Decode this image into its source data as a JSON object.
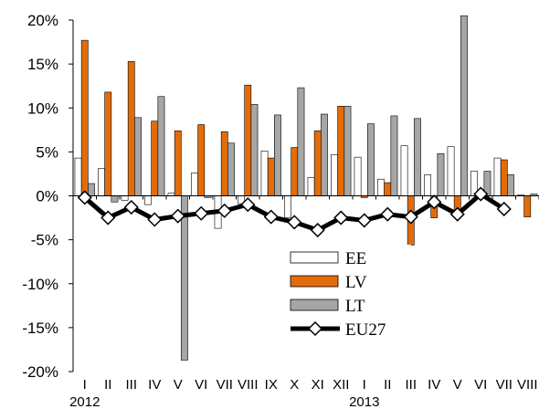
{
  "chart_data": {
    "type": "bar",
    "title": "",
    "xlabel": "",
    "ylabel": "",
    "ylim": [
      -20,
      20
    ],
    "y_ticks": [
      "20%",
      "15%",
      "10%",
      "5%",
      "0%",
      "-5%",
      "-10%",
      "-15%",
      "-20%"
    ],
    "y_tick_values": [
      20,
      15,
      10,
      5,
      0,
      -5,
      -10,
      -15,
      -20
    ],
    "grid": false,
    "legend_position": "lower-center",
    "categories": [
      "I",
      "II",
      "III",
      "IV",
      "V",
      "VI",
      "VII",
      "VIII",
      "IX",
      "X",
      "XI",
      "XII",
      "I",
      "II",
      "III",
      "IV",
      "V",
      "VI",
      "VII",
      "VIII"
    ],
    "year_labels": [
      {
        "label": "2012",
        "category_index": 0
      },
      {
        "label": "2013",
        "category_index": 12
      }
    ],
    "series": [
      {
        "name": "EE",
        "kind": "bar",
        "color": "#ffffff",
        "stroke": "#000000",
        "values": [
          4.3,
          3.1,
          -0.5,
          -1.0,
          0.3,
          2.6,
          -3.7,
          -0.9,
          5.1,
          -2.5,
          2.1,
          4.7,
          4.4,
          1.9,
          5.7,
          2.4,
          5.6,
          2.8,
          4.3,
          0.1
        ]
      },
      {
        "name": "LV",
        "kind": "bar",
        "color": "#e36c0a",
        "stroke": "#000000",
        "values": [
          17.7,
          11.8,
          15.3,
          8.5,
          7.4,
          8.1,
          7.3,
          12.6,
          4.3,
          5.5,
          7.4,
          10.2,
          -0.2,
          1.5,
          -5.6,
          -2.5,
          -1.8,
          0.0,
          4.1,
          -2.4
        ]
      },
      {
        "name": "LT",
        "kind": "bar",
        "color": "#a6a6a6",
        "stroke": "#000000",
        "values": [
          1.4,
          -0.7,
          8.9,
          11.3,
          -18.7,
          -0.2,
          6.0,
          10.4,
          9.2,
          12.3,
          9.3,
          10.2,
          8.2,
          9.1,
          8.8,
          4.8,
          20.5,
          2.8,
          2.4,
          0.2
        ]
      },
      {
        "name": "EU27",
        "kind": "line",
        "color": "#000000",
        "marker": "diamond",
        "values": [
          -0.2,
          -2.5,
          -1.3,
          -2.7,
          -2.3,
          -2.0,
          -1.7,
          -1.0,
          -2.4,
          -3.0,
          -3.9,
          -2.5,
          -2.8,
          -2.1,
          -2.4,
          -0.7,
          -2.1,
          0.2,
          -1.5,
          null
        ]
      }
    ]
  }
}
